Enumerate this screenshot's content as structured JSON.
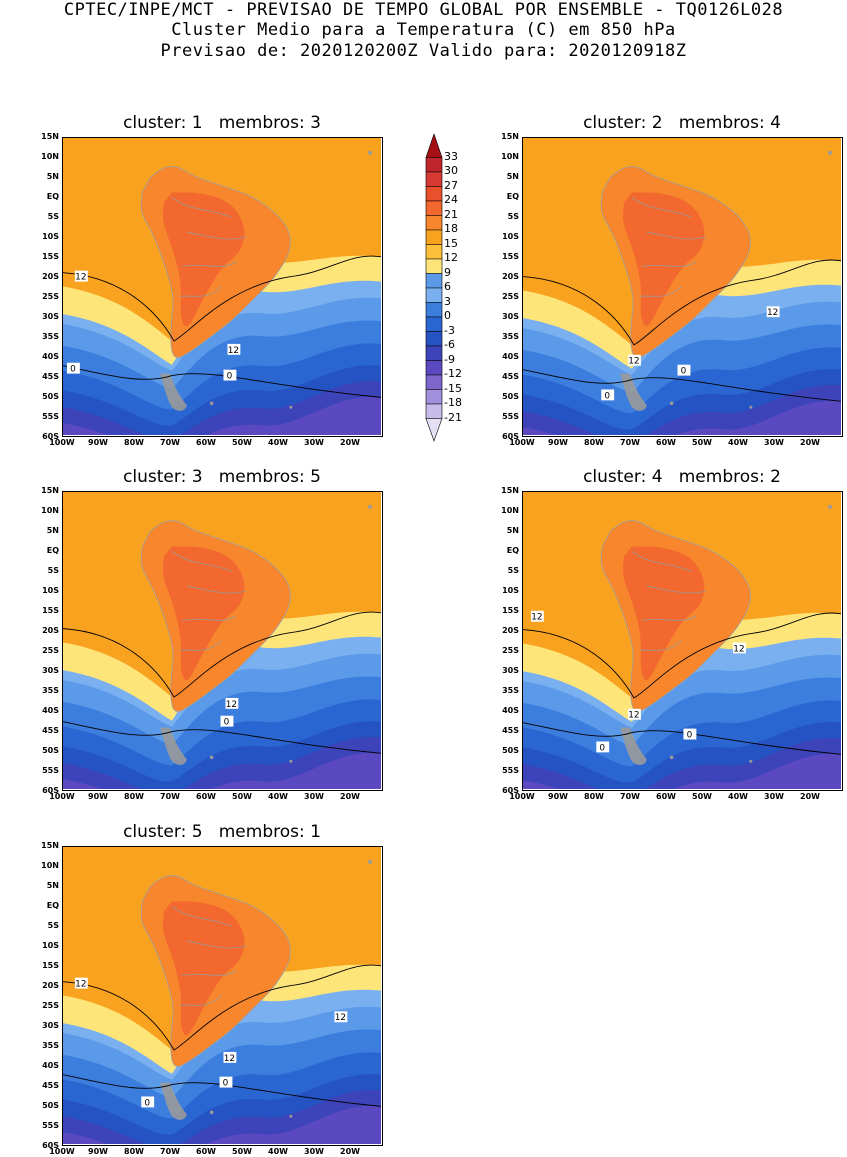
{
  "header": {
    "line1": "CPTEC/INPE/MCT - PREVISAO DE TEMPO GLOBAL POR ENSEMBLE - TQ0126L028",
    "line2": "Cluster Medio para a Temperatura (C) em 850 hPa",
    "line3": "Previsao de: 2020120200Z   Valido para: 2020120918Z"
  },
  "latitude_labels": [
    "15N",
    "10N",
    "5N",
    "EQ",
    "5S",
    "10S",
    "15S",
    "20S",
    "25S",
    "30S",
    "35S",
    "40S",
    "45S",
    "50S",
    "55S",
    "60S"
  ],
  "longitude_labels": [
    "100W",
    "90W",
    "80W",
    "70W",
    "60W",
    "50W",
    "40W",
    "30W",
    "20W"
  ],
  "colorbar": {
    "levels": [
      "33",
      "30",
      "27",
      "24",
      "21",
      "18",
      "15",
      "12",
      "9",
      "6",
      "3",
      "0",
      "-3",
      "-6",
      "-9",
      "-12",
      "-15",
      "-18",
      "-21"
    ],
    "colors": [
      "#a50f15",
      "#c0252b",
      "#d63a32",
      "#e8512c",
      "#f2682e",
      "#f7862d",
      "#f9a21f",
      "#fcc03a",
      "#fde57a",
      "#5b9ae8",
      "#7ab0f0",
      "#3c7ede",
      "#2a66d2",
      "#2653c4",
      "#3d43b8",
      "#5a49c0",
      "#7e66cc",
      "#a191dd",
      "#c6bbe9",
      "#e4dff4"
    ]
  },
  "panels": [
    {
      "label": "cluster: 1   membros: 3",
      "contours": [
        "12",
        "12",
        "0",
        "0"
      ]
    },
    {
      "label": "cluster: 2   membros: 4",
      "contours": [
        "12",
        "12",
        "0",
        "0"
      ]
    },
    {
      "label": "cluster: 3   membros: 5",
      "contours": [
        "12",
        "0"
      ]
    },
    {
      "label": "cluster: 4   membros: 2",
      "contours": [
        "12",
        "12",
        "12",
        "0",
        "0"
      ]
    },
    {
      "label": "cluster: 5   membros: 1",
      "contours": [
        "12",
        "12",
        "12",
        "0",
        "0"
      ]
    }
  ]
}
